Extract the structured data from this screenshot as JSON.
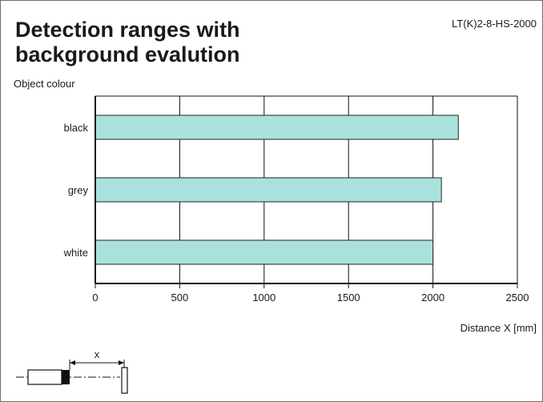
{
  "header": {
    "title": "Detection ranges with\nbackground evalution",
    "model": "LT(K)2-8-HS-2000"
  },
  "colors": {
    "bar_fill": "#a9e2dc",
    "bar_stroke": "#222222",
    "grid": "#111111"
  },
  "chart_data": {
    "type": "bar",
    "orientation": "horizontal",
    "categories": [
      "black",
      "grey",
      "white"
    ],
    "values": [
      2150,
      2050,
      2000
    ],
    "xlabel": "Distance X [mm]",
    "ylabel": "Object colour",
    "xlim": [
      0,
      2500
    ],
    "xticks": [
      0,
      500,
      1000,
      1500,
      2000,
      2500
    ],
    "grid": true
  },
  "diagram": {
    "label": "x"
  }
}
